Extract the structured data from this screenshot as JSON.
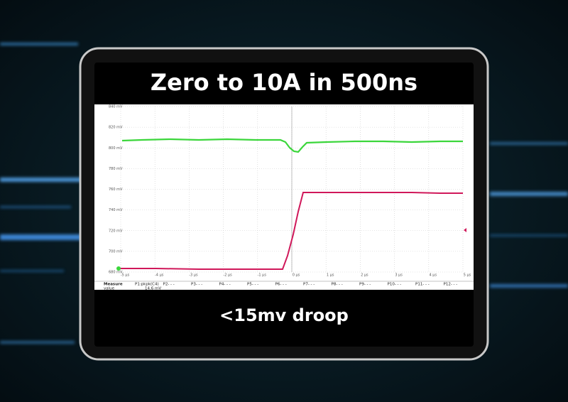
{
  "header": {
    "title": "Zero to 10A in 500ns"
  },
  "scope": {
    "y_labels": [
      "840 mV",
      "820 mV",
      "800 mV",
      "780 mV",
      "760 mV",
      "740 mV",
      "720 mV",
      "700 mV",
      "680 mV"
    ],
    "x_labels": [
      "-5 µs",
      "-4 µs",
      "-3 µs",
      "-2 µs",
      "-1 µs",
      "0 µs",
      "1 µs",
      "2 µs",
      "3 µs",
      "4 µs",
      "5 µs"
    ]
  },
  "measure": {
    "row_labels": [
      "Measure",
      "value"
    ],
    "headers": [
      "P1:pkpk(C4)",
      "P2- - -",
      "P3- - -",
      "P4- - -",
      "P5- - -",
      "P6- - -",
      "P7- - -",
      "P8- - -",
      "P9- - -",
      "P10- - -",
      "P11- - -",
      "P12- - -"
    ],
    "values": [
      "14.6 mV"
    ]
  },
  "footer": {
    "caption": "<15mv droop"
  }
}
